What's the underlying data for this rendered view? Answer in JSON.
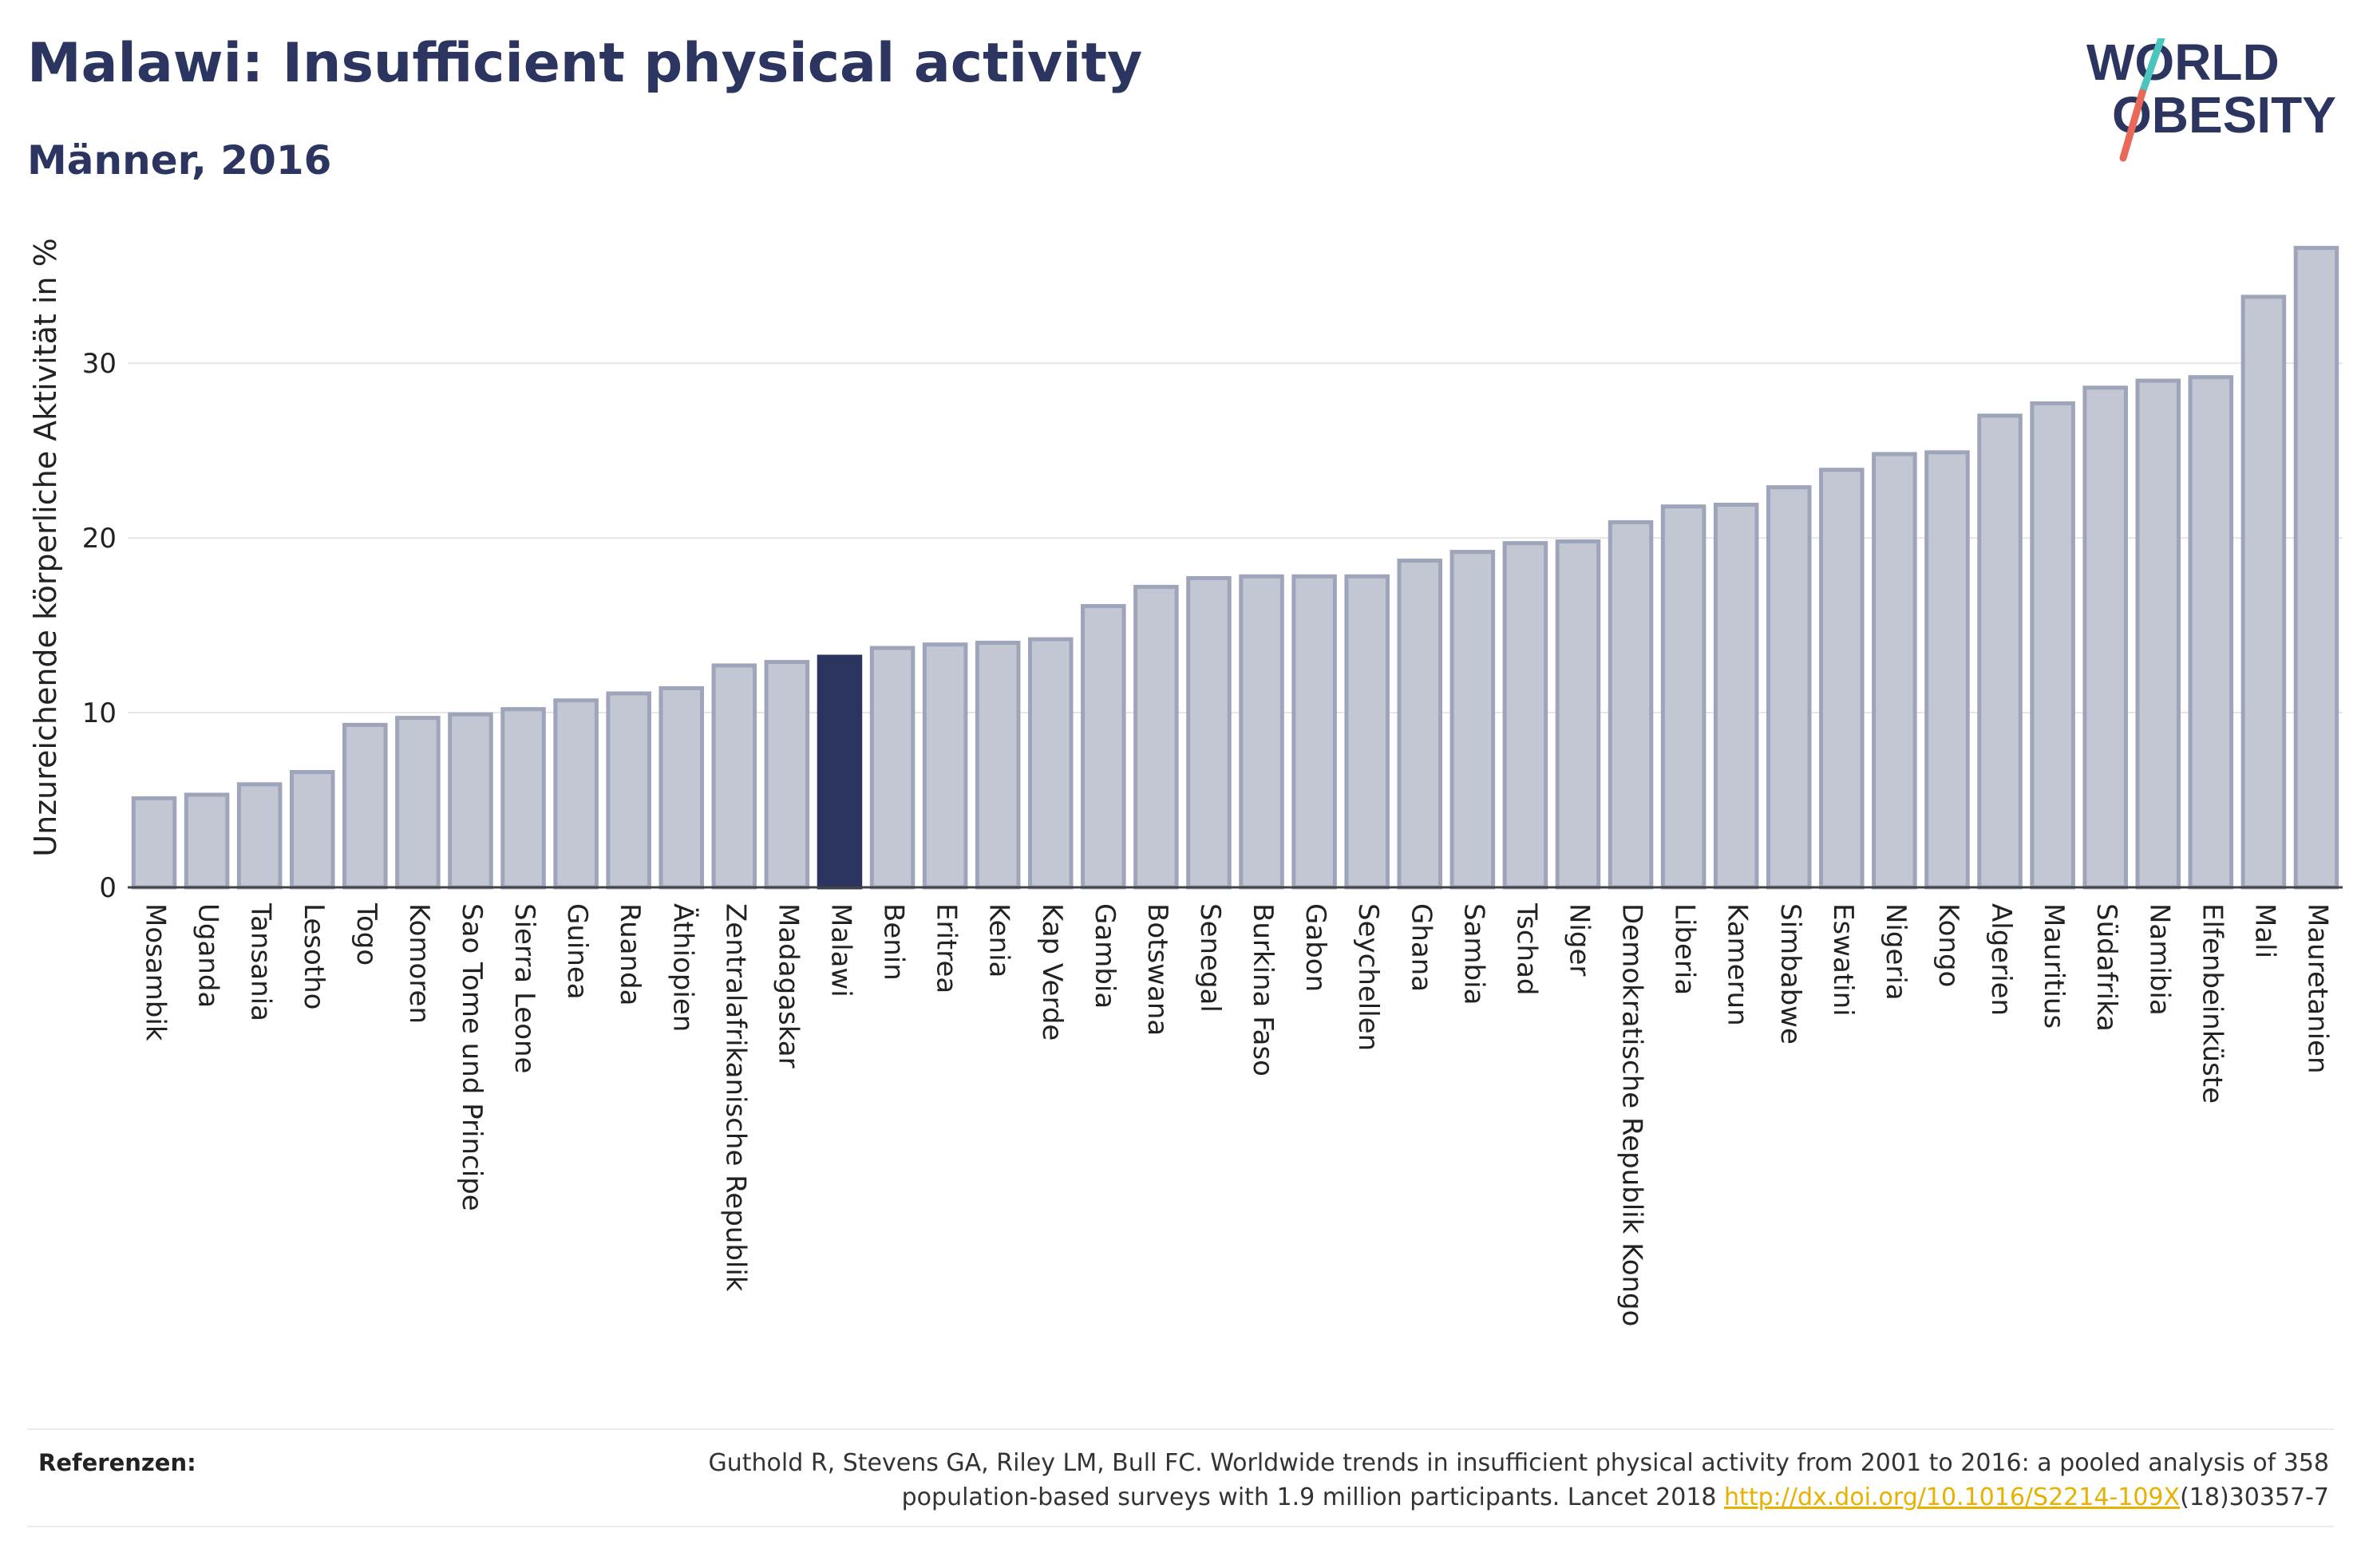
{
  "title": "Malawi: Insufficient physical activity",
  "subtitle": "Männer, 2016",
  "logo": {
    "line1": "WORLD",
    "line2": "OBESITY"
  },
  "colors": {
    "bar": "#c3c7d4",
    "bar_border": "#9ea4ba",
    "highlight": "#2b3560",
    "logo_slash_top": "#4cc5be",
    "logo_slash_bottom": "#e8685a",
    "link": "#e8b000"
  },
  "references": {
    "label": "Referenzen:",
    "text_before": "Guthold R, Stevens GA, Riley LM, Bull FC. Worldwide trends in insufficient physical activity from 2001 to 2016: a pooled analysis of 358 population-based surveys with 1.9 million participants. Lancet 2018 ",
    "link_text": "http://dx.doi.org/10.1016/S2214-109X",
    "text_after": "(18)30357-7"
  },
  "chart_data": {
    "type": "bar",
    "ylabel": "Unzureichende körperliche Aktivität in %",
    "ylim": [
      0,
      38
    ],
    "yticks": [
      0,
      10,
      20,
      30
    ],
    "grid": true,
    "highlight": "Malawi",
    "categories": [
      "Mosambik",
      "Uganda",
      "Tansania",
      "Lesotho",
      "Togo",
      "Komoren",
      "Sao Tome und Principe",
      "Sierra Leone",
      "Guinea",
      "Ruanda",
      "Äthiopien",
      "Zentralafrikanische Republik",
      "Madagaskar",
      "Malawi",
      "Benin",
      "Eritrea",
      "Kenia",
      "Kap Verde",
      "Gambia",
      "Botswana",
      "Senegal",
      "Burkina Faso",
      "Gabon",
      "Seychellen",
      "Ghana",
      "Sambia",
      "Tschad",
      "Niger",
      "Demokratische Republik Kongo",
      "Liberia",
      "Kamerun",
      "Simbabwe",
      "Eswatini",
      "Nigeria",
      "Kongo",
      "Algerien",
      "Mauritius",
      "Südafrika",
      "Namibia",
      "Elfenbeinküste",
      "Mali",
      "Mauretanien"
    ],
    "values": [
      5.1,
      5.3,
      5.9,
      6.6,
      9.3,
      9.7,
      9.9,
      10.2,
      10.7,
      11.1,
      11.4,
      12.7,
      12.9,
      13.2,
      13.7,
      13.9,
      14.0,
      14.2,
      16.1,
      17.2,
      17.7,
      17.8,
      17.8,
      17.8,
      18.7,
      19.2,
      19.7,
      19.8,
      20.9,
      21.8,
      21.9,
      22.9,
      23.9,
      24.8,
      24.9,
      27.0,
      27.7,
      28.6,
      29.0,
      29.2,
      33.8,
      36.6
    ]
  }
}
